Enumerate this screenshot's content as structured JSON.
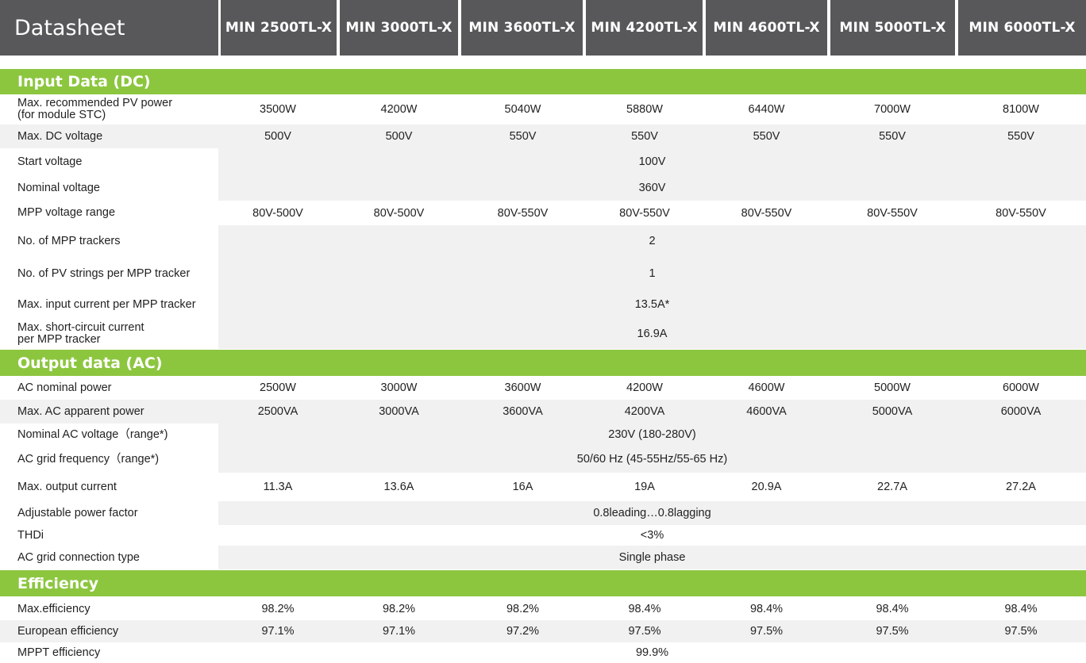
{
  "header": {
    "title": "Datasheet",
    "models": [
      "MIN 2500TL-X",
      "MIN 3000TL-X",
      "MIN 3600TL-X",
      "MIN 4200TL-X",
      "MIN 4600TL-X",
      "MIN 5000TL-X",
      "MIN 6000TL-X"
    ]
  },
  "sections": {
    "input": {
      "title": "Input Data (DC)"
    },
    "output": {
      "title": "Output data (AC)"
    },
    "efficiency": {
      "title": "Efficiency"
    }
  },
  "input_rows": {
    "max_pv_power": {
      "label_line1": "Max. recommended PV power",
      "label_line2": "(for module STC)",
      "values": [
        "3500W",
        "4200W",
        "5040W",
        "5880W",
        "6440W",
        "7000W",
        "8100W"
      ]
    },
    "max_dc_voltage": {
      "label": "Max. DC voltage",
      "values": [
        "500V",
        "500V",
        "550V",
        "550V",
        "550V",
        "550V",
        "550V"
      ]
    },
    "start_voltage": {
      "label": "Start voltage",
      "value": "100V"
    },
    "nominal_voltage": {
      "label": "Nominal voltage",
      "value": "360V"
    },
    "mpp_range": {
      "label": "MPP voltage range",
      "values": [
        "80V-500V",
        "80V-500V",
        "80V-550V",
        "80V-550V",
        "80V-550V",
        "80V-550V",
        "80V-550V"
      ]
    },
    "mpp_trackers": {
      "label": "No. of MPP trackers",
      "value": "2"
    },
    "pv_strings": {
      "label": "No. of PV strings per MPP tracker",
      "value": "1"
    },
    "max_input_current": {
      "label": "Max. input current per MPP tracker",
      "value": "13.5A*"
    },
    "short_circuit": {
      "label_line1": "Max. short-circuit current",
      "label_line2": "per MPP tracker",
      "value": "16.9A"
    }
  },
  "output_rows": {
    "ac_power": {
      "label": "AC nominal power",
      "values": [
        "2500W",
        "3000W",
        "3600W",
        "4200W",
        "4600W",
        "5000W",
        "6000W"
      ]
    },
    "ac_apparent": {
      "label": "Max. AC apparent power",
      "values": [
        "2500VA",
        "3000VA",
        "3600VA",
        "4200VA",
        "4600VA",
        "5000VA",
        "6000VA"
      ]
    },
    "ac_voltage": {
      "label": "Nominal AC voltage（range*)",
      "value": "230V (180-280V)"
    },
    "ac_frequency": {
      "label": "AC grid frequency（range*)",
      "value": "50/60 Hz (45-55Hz/55-65 Hz)"
    },
    "max_output_current": {
      "label": "Max. output current",
      "values": [
        "11.3A",
        "13.6A",
        "16A",
        "19A",
        "20.9A",
        "22.7A",
        "27.2A"
      ]
    },
    "power_factor": {
      "label": "Adjustable power factor",
      "value": "0.8leading…0.8lagging"
    },
    "thdi": {
      "label": "THDi",
      "value": "<3%"
    },
    "connection": {
      "label": "AC grid connection type",
      "value": "Single phase"
    }
  },
  "efficiency_rows": {
    "max_eff": {
      "label": "Max.efficiency",
      "values": [
        "98.2%",
        "98.2%",
        "98.2%",
        "98.4%",
        "98.4%",
        "98.4%",
        "98.4%"
      ]
    },
    "euro_eff": {
      "label": "European efficiency",
      "values": [
        "97.1%",
        "97.1%",
        "97.2%",
        "97.5%",
        "97.5%",
        "97.5%",
        "97.5%"
      ]
    },
    "mppt_eff": {
      "label": "MPPT efficiency",
      "value": "99.9%"
    }
  }
}
